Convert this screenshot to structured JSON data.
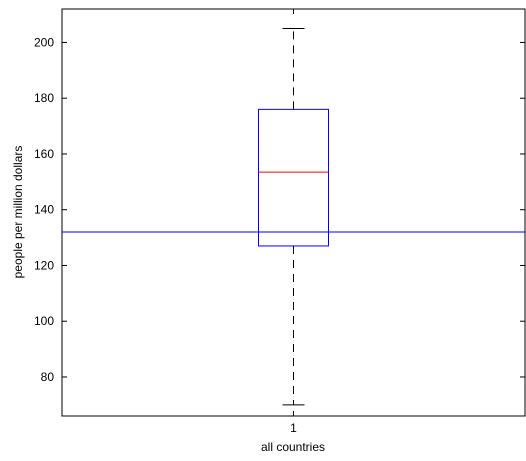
{
  "chart_data": {
    "type": "box",
    "categories": [
      "1"
    ],
    "xlabel": "all countries",
    "ylabel": "people per million dollars",
    "ylim": [
      66,
      212
    ],
    "yticks": [
      80,
      100,
      120,
      140,
      160,
      180,
      200
    ],
    "grid": false,
    "boxes": [
      {
        "category": "1",
        "whisker_low": 70,
        "q1": 127,
        "median": 153.5,
        "q3": 176,
        "whisker_high": 205
      }
    ],
    "reference_line": {
      "value": 132,
      "orientation": "horizontal"
    },
    "colors": {
      "box": "#0000ff",
      "median": "#ff0000",
      "whisker": "#000000",
      "reference_line": "#0000ff",
      "axes": "#000000"
    }
  }
}
